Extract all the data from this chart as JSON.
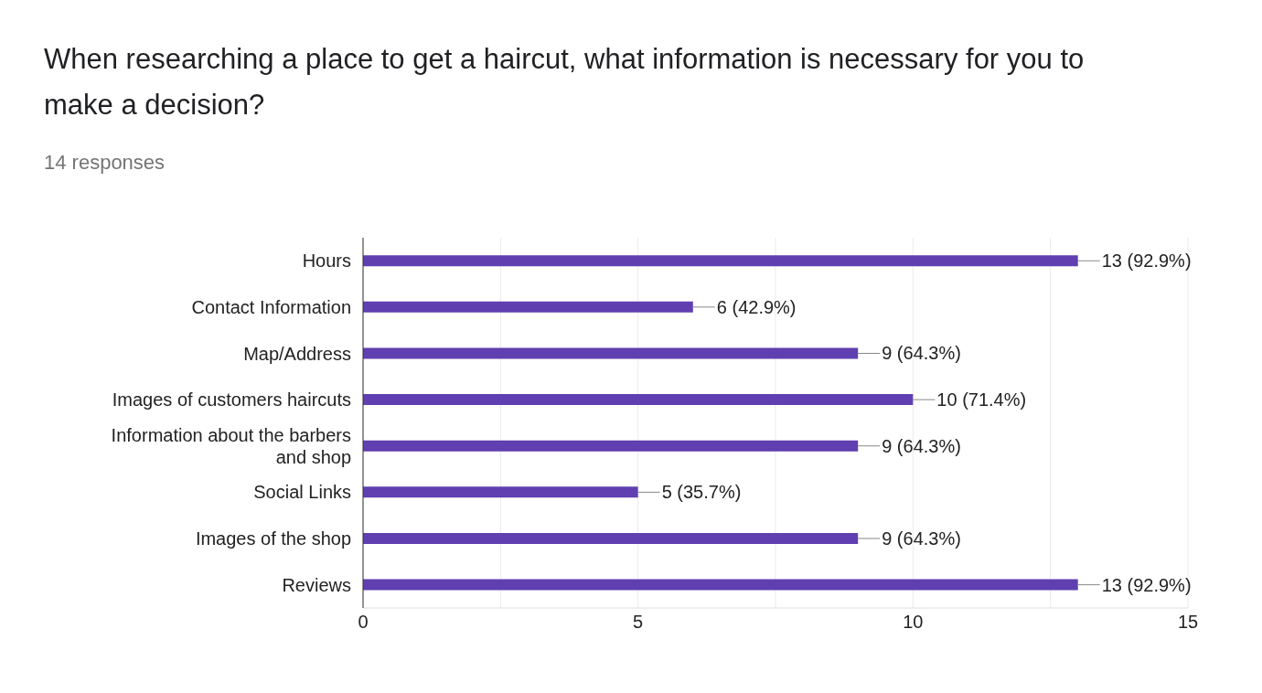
{
  "chart_data": {
    "type": "bar",
    "orientation": "horizontal",
    "title": "When researching a place to get a haircut, what information is necessary for you to make a decision?",
    "subtitle": "14 responses",
    "categories": [
      "Hours",
      "Contact Information",
      "Map/Address",
      "Images of customers haircuts",
      "Information about the barbers and shop",
      "Social Links",
      "Images of the shop",
      "Reviews"
    ],
    "values": [
      13,
      6,
      9,
      10,
      9,
      5,
      9,
      13
    ],
    "value_labels": [
      "13 (92.9%)",
      "6 (42.9%)",
      "9 (64.3%)",
      "10 (71.4%)",
      "9 (64.3%)",
      "5 (35.7%)",
      "9 (64.3%)",
      "13 (92.9%)"
    ],
    "color": "#603fb1",
    "xlim": [
      0,
      15
    ],
    "xticks": [
      0,
      {
        "value": 2.5,
        "label": null
      },
      5,
      {
        "value": 7.5,
        "label": null
      },
      10,
      {
        "value": 12.5,
        "label": null
      },
      15
    ],
    "grid": "x"
  }
}
